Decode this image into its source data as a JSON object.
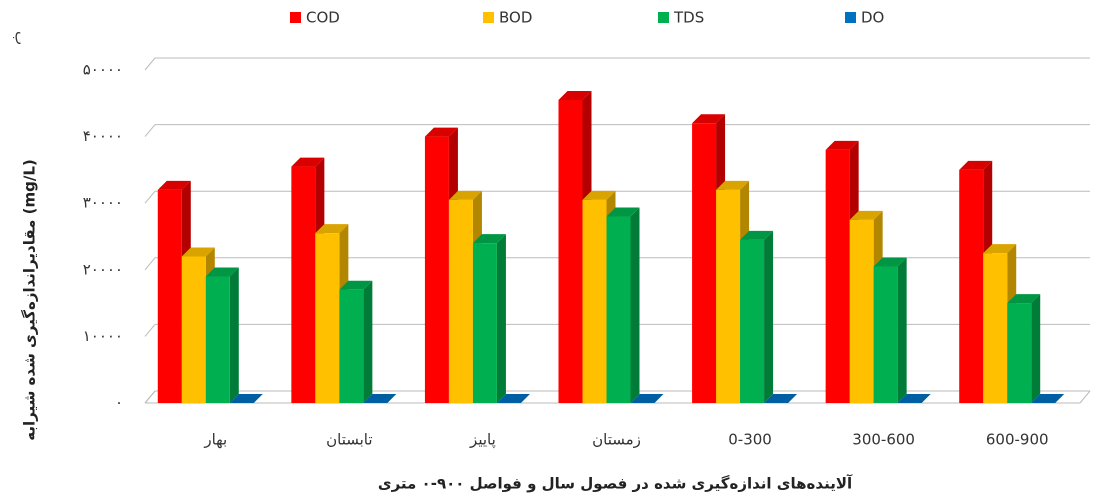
{
  "chart_data": {
    "type": "bar3d",
    "panel_label": "ب",
    "y_label": "مقادیراندازه‌گیری شده شیرابه (mg/L)",
    "x_label": "آلاینده‌های اندازه‌گیری شده در فصول سال و فواصل ۹۰۰-۰ متری",
    "categories": [
      "بهار",
      "تابستان",
      "پاییز",
      "زمستان",
      "0-300",
      "300-600",
      "600-900"
    ],
    "series": [
      {
        "name": "COD",
        "color": "#ff0000",
        "values": [
          32000,
          35500,
          40000,
          45500,
          42000,
          38000,
          35000
        ]
      },
      {
        "name": "BOD",
        "color": "#ffc000",
        "values": [
          22000,
          25500,
          30500,
          30500,
          32000,
          27500,
          22500
        ]
      },
      {
        "name": "TDS",
        "color": "#00b050",
        "values": [
          19000,
          17000,
          24000,
          28000,
          24500,
          20500,
          15000
        ]
      },
      {
        "name": "DO",
        "color": "#0070c0",
        "values": [
          5,
          5,
          5,
          5,
          5,
          5,
          5
        ]
      }
    ],
    "ylim": [
      0,
      50000
    ],
    "yticks": [
      {
        "value": 0,
        "label": "۰"
      },
      {
        "value": 10000,
        "label": "۱۰۰۰۰"
      },
      {
        "value": 20000,
        "label": "۲۰۰۰۰"
      },
      {
        "value": 30000,
        "label": "۳۰۰۰۰"
      },
      {
        "value": 40000,
        "label": "۴۰۰۰۰"
      },
      {
        "value": 50000,
        "label": "۵۰۰۰۰"
      }
    ],
    "grid": true
  }
}
